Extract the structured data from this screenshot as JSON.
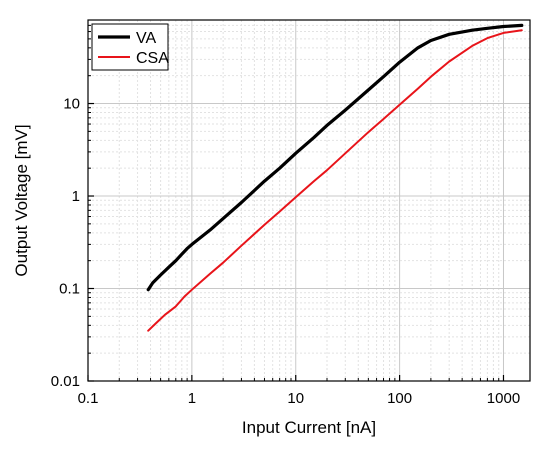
{
  "chart_data": {
    "type": "line",
    "title": "",
    "xlabel": "Input Current [nA]",
    "ylabel": "Output Voltage [mV]",
    "xscale": "log",
    "yscale": "log",
    "xlim": [
      0.1,
      1800
    ],
    "ylim": [
      0.01,
      80
    ],
    "grid": true,
    "legend_position": "top-left",
    "x_ticks": [
      0.1,
      1,
      10,
      100,
      1000
    ],
    "x_tick_labels": [
      "0.1",
      "1",
      "10",
      "100",
      "1000"
    ],
    "y_ticks": [
      0.01,
      0.1,
      1,
      10
    ],
    "y_tick_labels": [
      "0.01",
      "0.1",
      "1",
      "10"
    ],
    "series": [
      {
        "name": "VA",
        "color": "#000000",
        "points": [
          [
            0.38,
            0.097
          ],
          [
            0.42,
            0.115
          ],
          [
            0.5,
            0.14
          ],
          [
            0.6,
            0.17
          ],
          [
            0.7,
            0.2
          ],
          [
            0.8,
            0.235
          ],
          [
            0.9,
            0.27
          ],
          [
            1.0,
            0.3
          ],
          [
            1.5,
            0.43
          ],
          [
            2,
            0.57
          ],
          [
            3,
            0.85
          ],
          [
            5,
            1.45
          ],
          [
            7,
            2.0
          ],
          [
            10,
            2.9
          ],
          [
            15,
            4.3
          ],
          [
            20,
            5.8
          ],
          [
            30,
            8.5
          ],
          [
            50,
            14
          ],
          [
            70,
            19.5
          ],
          [
            100,
            28
          ],
          [
            150,
            40
          ],
          [
            200,
            48
          ],
          [
            300,
            56
          ],
          [
            500,
            62
          ],
          [
            700,
            65
          ],
          [
            1000,
            68
          ],
          [
            1500,
            70
          ]
        ]
      },
      {
        "name": "CSA",
        "color": "#e8141a",
        "points": [
          [
            0.38,
            0.035
          ],
          [
            0.45,
            0.042
          ],
          [
            0.55,
            0.052
          ],
          [
            0.7,
            0.064
          ],
          [
            0.85,
            0.082
          ],
          [
            1.0,
            0.097
          ],
          [
            1.5,
            0.145
          ],
          [
            2,
            0.19
          ],
          [
            3,
            0.29
          ],
          [
            5,
            0.49
          ],
          [
            7,
            0.68
          ],
          [
            10,
            0.97
          ],
          [
            15,
            1.45
          ],
          [
            20,
            1.9
          ],
          [
            30,
            2.9
          ],
          [
            50,
            4.9
          ],
          [
            70,
            6.8
          ],
          [
            100,
            9.7
          ],
          [
            150,
            14.5
          ],
          [
            200,
            19.5
          ],
          [
            300,
            28.5
          ],
          [
            500,
            42
          ],
          [
            700,
            51
          ],
          [
            1000,
            58
          ],
          [
            1500,
            62
          ]
        ]
      }
    ]
  }
}
